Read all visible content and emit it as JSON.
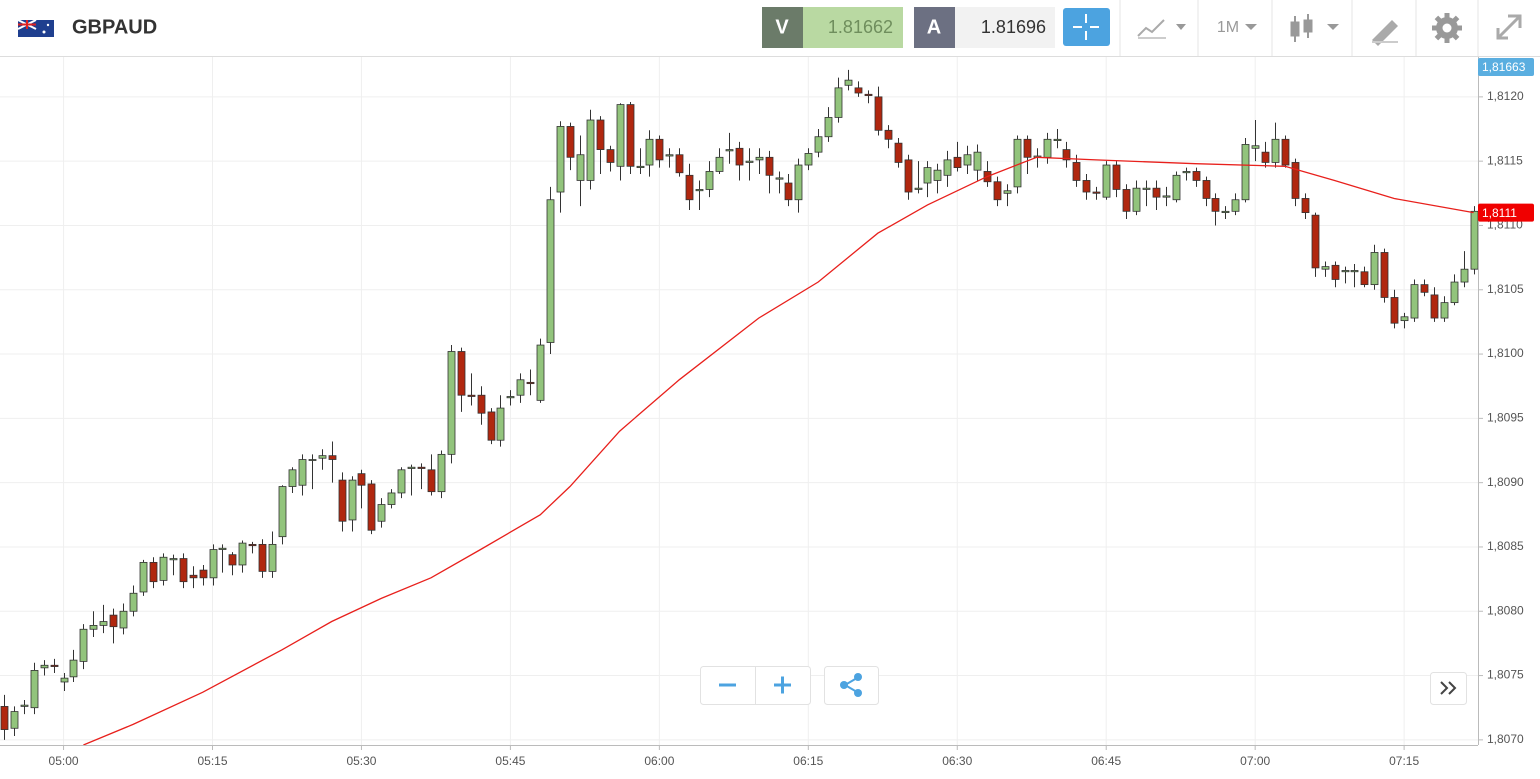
{
  "toolbar": {
    "symbol": "GBPAUD",
    "bid_label": "V",
    "bid": 1.81662,
    "ask_label": "A",
    "ask": 1.81696,
    "timeframe": "1M"
  },
  "chart_data": {
    "type": "candlestick",
    "up_color": "#92c47c",
    "down_color": "#b0270f",
    "ohlc": [
      [
        1.80726,
        1.80735,
        1.807,
        1.80708
      ],
      [
        1.80709,
        1.80726,
        1.80703,
        1.80722
      ],
      [
        1.80726,
        1.80731,
        1.8072,
        1.80727
      ],
      [
        1.80725,
        1.8076,
        1.8072,
        1.80754
      ],
      [
        1.80756,
        1.80762,
        1.8075,
        1.80758
      ],
      [
        1.80758,
        1.80763,
        1.80752,
        1.80757
      ],
      [
        1.80745,
        1.80752,
        1.80738,
        1.80748
      ],
      [
        1.80749,
        1.8077,
        1.80745,
        1.80762
      ],
      [
        1.80761,
        1.8079,
        1.80755,
        1.80786
      ],
      [
        1.80786,
        1.808,
        1.8078,
        1.80789
      ],
      [
        1.80789,
        1.80805,
        1.80783,
        1.80792
      ],
      [
        1.80797,
        1.80802,
        1.80775,
        1.80788
      ],
      [
        1.80787,
        1.80806,
        1.80782,
        1.808
      ],
      [
        1.808,
        1.8082,
        1.80796,
        1.80814
      ],
      [
        1.80815,
        1.8084,
        1.80812,
        1.80838
      ],
      [
        1.80838,
        1.80842,
        1.80818,
        1.80823
      ],
      [
        1.80824,
        1.80845,
        1.8082,
        1.80842
      ],
      [
        1.8084,
        1.80844,
        1.80828,
        1.80841
      ],
      [
        1.80841,
        1.80845,
        1.80818,
        1.80823
      ],
      [
        1.80828,
        1.80835,
        1.80818,
        1.80826
      ],
      [
        1.80832,
        1.80836,
        1.8082,
        1.80826
      ],
      [
        1.80826,
        1.80852,
        1.8082,
        1.80848
      ],
      [
        1.80848,
        1.80852,
        1.8083,
        1.80849
      ],
      [
        1.80844,
        1.80846,
        1.80828,
        1.80836
      ],
      [
        1.80836,
        1.80855,
        1.8083,
        1.80853
      ],
      [
        1.80852,
        1.80854,
        1.80845,
        1.80851
      ],
      [
        1.80852,
        1.80856,
        1.80826,
        1.80831
      ],
      [
        1.80831,
        1.80862,
        1.80826,
        1.80852
      ],
      [
        1.80858,
        1.80898,
        1.80852,
        1.80897
      ],
      [
        1.80897,
        1.80912,
        1.80892,
        1.8091
      ],
      [
        1.80898,
        1.80922,
        1.8089,
        1.80918
      ],
      [
        1.80918,
        1.80922,
        1.80895,
        1.80918
      ],
      [
        1.80919,
        1.80926,
        1.8091,
        1.80921
      ],
      [
        1.80921,
        1.80932,
        1.809,
        1.80918
      ],
      [
        1.80902,
        1.80908,
        1.80862,
        1.8087
      ],
      [
        1.80871,
        1.80905,
        1.80862,
        1.80902
      ],
      [
        1.80907,
        1.8091,
        1.8088,
        1.80898
      ],
      [
        1.80899,
        1.80902,
        1.8086,
        1.80863
      ],
      [
        1.8087,
        1.80888,
        1.80865,
        1.80883
      ],
      [
        1.80883,
        1.80895,
        1.8088,
        1.80892
      ],
      [
        1.80892,
        1.80912,
        1.80888,
        1.8091
      ],
      [
        1.80911,
        1.80914,
        1.8089,
        1.80912
      ],
      [
        1.80912,
        1.80915,
        1.80895,
        1.80911
      ],
      [
        1.8091,
        1.80922,
        1.8089,
        1.80893
      ],
      [
        1.80893,
        1.80925,
        1.80888,
        1.80922
      ],
      [
        1.80922,
        1.81007,
        1.80915,
        1.81002
      ],
      [
        1.81002,
        1.81005,
        1.80955,
        1.80968
      ],
      [
        1.80968,
        1.80985,
        1.8096,
        1.80967
      ],
      [
        1.80968,
        1.80975,
        1.80945,
        1.80954
      ],
      [
        1.80955,
        1.80958,
        1.8093,
        1.80933
      ],
      [
        1.80933,
        1.80968,
        1.80928,
        1.80958
      ],
      [
        1.80966,
        1.80972,
        1.8096,
        1.80967
      ],
      [
        1.80968,
        1.80985,
        1.80962,
        1.8098
      ],
      [
        1.80978,
        1.80988,
        1.80968,
        1.80977
      ],
      [
        1.80964,
        1.81012,
        1.80962,
        1.81007
      ],
      [
        1.81009,
        1.8113,
        1.81,
        1.8112
      ],
      [
        1.81126,
        1.81181,
        1.8111,
        1.81177
      ],
      [
        1.81177,
        1.8118,
        1.81143,
        1.81153
      ],
      [
        1.81135,
        1.8117,
        1.81115,
        1.81155
      ],
      [
        1.81135,
        1.8119,
        1.81128,
        1.81182
      ],
      [
        1.81182,
        1.81185,
        1.8114,
        1.81159
      ],
      [
        1.81159,
        1.81162,
        1.81142,
        1.81149
      ],
      [
        1.81146,
        1.81195,
        1.81135,
        1.81194
      ],
      [
        1.81194,
        1.81196,
        1.8114,
        1.81146
      ],
      [
        1.81145,
        1.8116,
        1.8114,
        1.81146
      ],
      [
        1.81147,
        1.81174,
        1.81138,
        1.81167
      ],
      [
        1.81167,
        1.8117,
        1.81145,
        1.81151
      ],
      [
        1.81154,
        1.8116,
        1.81145,
        1.81155
      ],
      [
        1.81155,
        1.8116,
        1.81138,
        1.81141
      ],
      [
        1.81139,
        1.81148,
        1.81112,
        1.8112
      ],
      [
        1.81127,
        1.81135,
        1.81112,
        1.81128
      ],
      [
        1.81128,
        1.8115,
        1.81122,
        1.81142
      ],
      [
        1.81142,
        1.8116,
        1.8114,
        1.81153
      ],
      [
        1.81158,
        1.81172,
        1.81148,
        1.81159
      ],
      [
        1.8116,
        1.81165,
        1.81135,
        1.81147
      ],
      [
        1.81149,
        1.8116,
        1.81135,
        1.8115
      ],
      [
        1.81151,
        1.8116,
        1.8114,
        1.81153
      ],
      [
        1.81153,
        1.81158,
        1.81125,
        1.81139
      ],
      [
        1.81136,
        1.81142,
        1.81125,
        1.81137
      ],
      [
        1.81133,
        1.8114,
        1.81115,
        1.8112
      ],
      [
        1.8112,
        1.81152,
        1.8111,
        1.81147
      ],
      [
        1.81147,
        1.8116,
        1.81143,
        1.81156
      ],
      [
        1.81157,
        1.81175,
        1.81153,
        1.81169
      ],
      [
        1.81169,
        1.81192,
        1.81165,
        1.81184
      ],
      [
        1.81184,
        1.81215,
        1.8118,
        1.81207
      ],
      [
        1.81209,
        1.81221,
        1.81205,
        1.81213
      ],
      [
        1.81207,
        1.81212,
        1.812,
        1.81203
      ],
      [
        1.81202,
        1.81205,
        1.81195,
        1.81201
      ],
      [
        1.812,
        1.81208,
        1.8117,
        1.81174
      ],
      [
        1.81174,
        1.81178,
        1.8116,
        1.81167
      ],
      [
        1.81164,
        1.81168,
        1.81145,
        1.81149
      ],
      [
        1.81151,
        1.81155,
        1.8112,
        1.81126
      ],
      [
        1.81128,
        1.8115,
        1.81125,
        1.81129
      ],
      [
        1.81133,
        1.8115,
        1.81122,
        1.81145
      ],
      [
        1.81135,
        1.81148,
        1.81125,
        1.81143
      ],
      [
        1.81139,
        1.81158,
        1.8113,
        1.81151
      ],
      [
        1.81153,
        1.81165,
        1.81142,
        1.81145
      ],
      [
        1.81147,
        1.81162,
        1.8114,
        1.81155
      ],
      [
        1.81143,
        1.81163,
        1.81135,
        1.81157
      ],
      [
        1.81142,
        1.8115,
        1.8113,
        1.81134
      ],
      [
        1.81134,
        1.81138,
        1.81115,
        1.8112
      ],
      [
        1.81125,
        1.81132,
        1.81115,
        1.81127
      ],
      [
        1.8113,
        1.8117,
        1.81125,
        1.81167
      ],
      [
        1.81167,
        1.8117,
        1.8114,
        1.81153
      ],
      [
        1.81153,
        1.8116,
        1.81145,
        1.81154
      ],
      [
        1.81153,
        1.81172,
        1.81148,
        1.81167
      ],
      [
        1.81166,
        1.81175,
        1.8116,
        1.81167
      ],
      [
        1.81159,
        1.81165,
        1.81145,
        1.81151
      ],
      [
        1.81149,
        1.81155,
        1.8113,
        1.81135
      ],
      [
        1.81135,
        1.8114,
        1.8112,
        1.81126
      ],
      [
        1.81126,
        1.8113,
        1.8112,
        1.81125
      ],
      [
        1.81122,
        1.8115,
        1.8112,
        1.81147
      ],
      [
        1.81147,
        1.8115,
        1.81122,
        1.81128
      ],
      [
        1.81128,
        1.81132,
        1.81105,
        1.81111
      ],
      [
        1.81111,
        1.81135,
        1.81108,
        1.81129
      ],
      [
        1.81128,
        1.81135,
        1.81115,
        1.81129
      ],
      [
        1.81129,
        1.81135,
        1.81112,
        1.81122
      ],
      [
        1.81122,
        1.8113,
        1.81115,
        1.81123
      ],
      [
        1.8112,
        1.81142,
        1.81118,
        1.81139
      ],
      [
        1.81141,
        1.81145,
        1.81135,
        1.81142
      ],
      [
        1.81142,
        1.81145,
        1.8113,
        1.81135
      ],
      [
        1.81135,
        1.81138,
        1.81115,
        1.81121
      ],
      [
        1.81121,
        1.81125,
        1.811,
        1.81111
      ],
      [
        1.8111,
        1.81115,
        1.81105,
        1.81111
      ],
      [
        1.81111,
        1.81125,
        1.81108,
        1.8112
      ],
      [
        1.8112,
        1.81168,
        1.81118,
        1.81163
      ],
      [
        1.8116,
        1.81182,
        1.8115,
        1.81162
      ],
      [
        1.81157,
        1.81165,
        1.81145,
        1.81149
      ],
      [
        1.81149,
        1.8118,
        1.81145,
        1.81167
      ],
      [
        1.81167,
        1.8117,
        1.81145,
        1.81147
      ],
      [
        1.81149,
        1.81152,
        1.81115,
        1.81121
      ],
      [
        1.81121,
        1.81125,
        1.81105,
        1.8111
      ],
      [
        1.81108,
        1.8111,
        1.8106,
        1.81067
      ],
      [
        1.81066,
        1.81072,
        1.8106,
        1.81068
      ],
      [
        1.81069,
        1.81072,
        1.81052,
        1.81058
      ],
      [
        1.81064,
        1.81068,
        1.81055,
        1.81065
      ],
      [
        1.81064,
        1.8107,
        1.81052,
        1.81065
      ],
      [
        1.81064,
        1.81068,
        1.81052,
        1.81054
      ],
      [
        1.81054,
        1.81085,
        1.8105,
        1.81079
      ],
      [
        1.81079,
        1.81082,
        1.8104,
        1.81044
      ],
      [
        1.81044,
        1.8105,
        1.8102,
        1.81024
      ],
      [
        1.81026,
        1.81032,
        1.8102,
        1.81029
      ],
      [
        1.81028,
        1.81058,
        1.81025,
        1.81054
      ],
      [
        1.81054,
        1.81058,
        1.81045,
        1.81048
      ],
      [
        1.81046,
        1.81052,
        1.81025,
        1.81028
      ],
      [
        1.81028,
        1.81045,
        1.81025,
        1.8104
      ],
      [
        1.8104,
        1.81062,
        1.81038,
        1.81056
      ],
      [
        1.81056,
        1.8108,
        1.81052,
        1.81066
      ],
      [
        1.81066,
        1.81115,
        1.81062,
        1.81111
      ]
    ],
    "ma": {
      "color": "#e8201c",
      "x": [
        8,
        13,
        20,
        28,
        33,
        38,
        43,
        48,
        54,
        57,
        62,
        68,
        76,
        82,
        88,
        93,
        99,
        104,
        110,
        120,
        129,
        134,
        140,
        148
      ],
      "values": [
        1.80696,
        1.80712,
        1.80737,
        1.8077,
        1.80792,
        1.8081,
        1.80826,
        1.80848,
        1.80875,
        1.80897,
        1.8094,
        1.8098,
        1.81028,
        1.81056,
        1.81094,
        1.81116,
        1.81138,
        1.81153,
        1.81151,
        1.81148,
        1.81146,
        1.81135,
        1.81121,
        1.8111
      ]
    },
    "xlim": [
      -0.4,
      148.44
    ],
    "xticks": [
      {
        "value": 6,
        "label": "05:00"
      },
      {
        "value": 21,
        "label": "05:15"
      },
      {
        "value": 36,
        "label": "05:30"
      },
      {
        "value": 51,
        "label": "05:45"
      },
      {
        "value": 66,
        "label": "06:00"
      },
      {
        "value": 81,
        "label": "06:15"
      },
      {
        "value": 96,
        "label": "06:30"
      },
      {
        "value": 111,
        "label": "06:45"
      },
      {
        "value": 126,
        "label": "07:00"
      },
      {
        "value": 141,
        "label": "07:15"
      }
    ],
    "ylim": [
      1.80696,
      1.81231
    ],
    "yticks": [
      {
        "value": 1.807,
        "label": "1,8070"
      },
      {
        "value": 1.8075,
        "label": "1,8075"
      },
      {
        "value": 1.808,
        "label": "1,8080"
      },
      {
        "value": 1.8085,
        "label": "1,8085"
      },
      {
        "value": 1.809,
        "label": "1,8090"
      },
      {
        "value": 1.8095,
        "label": "1,8095"
      },
      {
        "value": 1.81,
        "label": "1,8100"
      },
      {
        "value": 1.8105,
        "label": "1,8105"
      },
      {
        "value": 1.811,
        "label": "1,8110"
      },
      {
        "value": 1.8115,
        "label": "1,8115"
      },
      {
        "value": 1.812,
        "label": "1,8120"
      }
    ],
    "grid": true,
    "price_tags": [
      {
        "value": 1.81663,
        "label": "1,81663",
        "color": "#5aaee0"
      },
      {
        "value": 1.8111,
        "label": "1,8111",
        "color": "#f00000"
      }
    ]
  }
}
